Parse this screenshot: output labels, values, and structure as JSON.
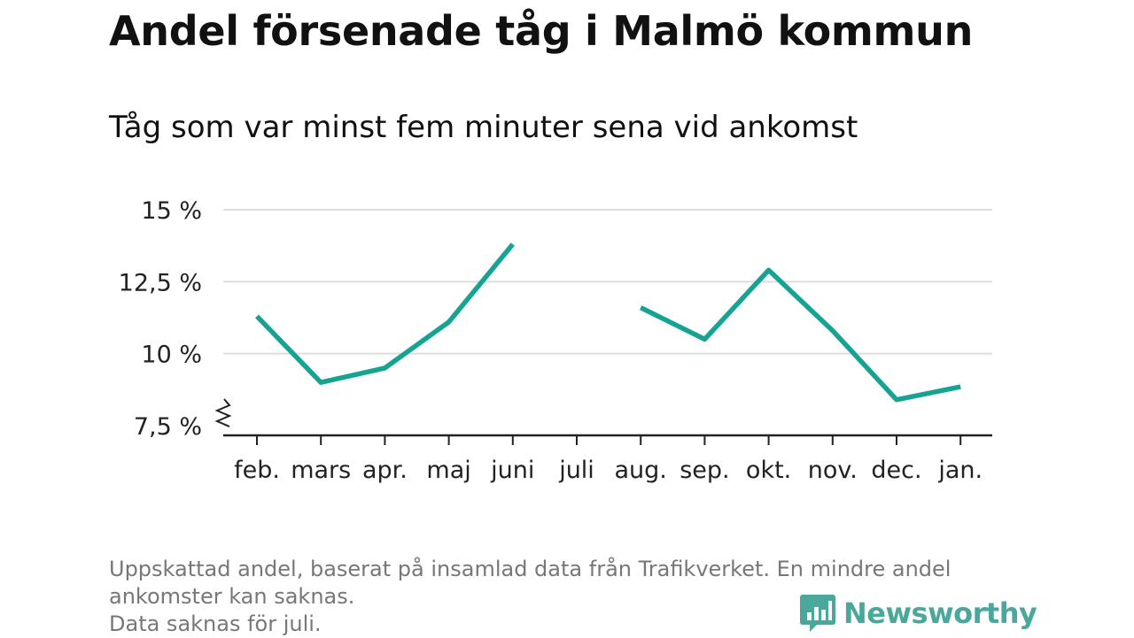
{
  "title": "Andel försenade tåg i Malmö kommun",
  "subtitle": "Tåg som var minst fem minuter sena vid ankomst",
  "footnote": {
    "line1": "Uppskattad andel, baserat på insamlad data från Trafikverket. En mindre andel",
    "line2": "ankomster kan saknas.",
    "line3": "Data saknas för juli."
  },
  "brand": {
    "name": "Newsworthy",
    "color": "#4aa89b",
    "icon": "newsworthy-logo-icon"
  },
  "chart_data": {
    "type": "line",
    "title": "Andel försenade tåg i Malmö kommun",
    "subtitle": "Tåg som var minst fem minuter sena vid ankomst",
    "categories": [
      "feb.",
      "mars",
      "apr.",
      "maj",
      "juni",
      "juli",
      "aug.",
      "sep.",
      "okt.",
      "nov.",
      "dec.",
      "jan."
    ],
    "series": [
      {
        "values": [
          11.3,
          9.0,
          9.5,
          11.1,
          13.8,
          null,
          11.6,
          10.5,
          12.9,
          10.8,
          8.4,
          8.85
        ],
        "color": "#16a394"
      }
    ],
    "yticks": [
      7.5,
      10,
      12.5,
      15
    ],
    "ytick_labels": [
      "7,5 %",
      "10 %",
      "12,5 %",
      "15 %"
    ],
    "ylim": [
      7.5,
      15
    ],
    "y_axis_break": true,
    "grid": true,
    "xlabel": "",
    "ylabel": ""
  }
}
